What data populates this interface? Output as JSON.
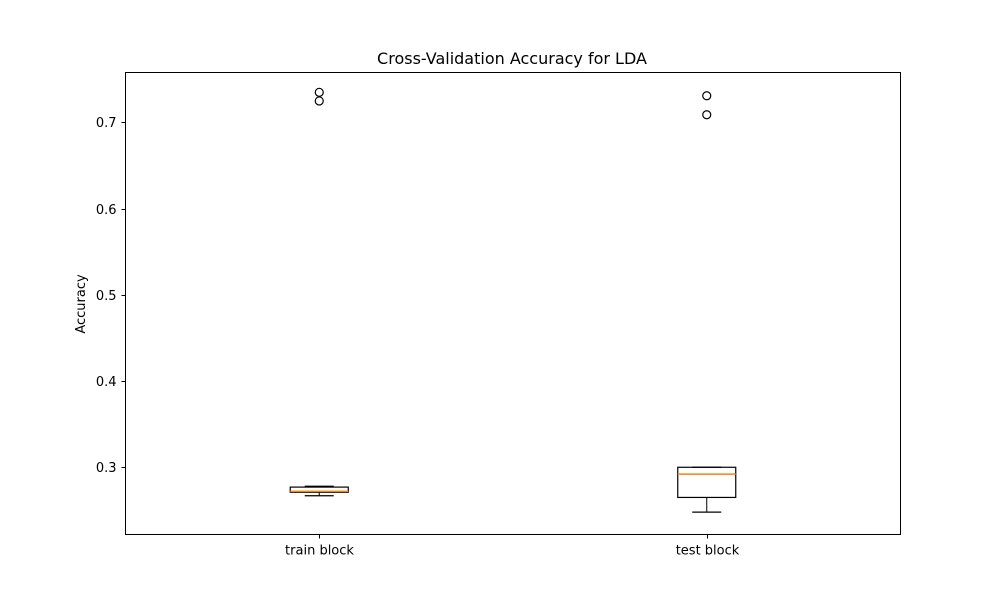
{
  "chart_data": {
    "type": "box",
    "title": "Cross-Validation Accuracy for LDA",
    "xlabel": "",
    "ylabel": "Accuracy",
    "ylim": [
      0.222,
      0.758
    ],
    "yticks": [
      {
        "value": 0.3,
        "label": "0.3"
      },
      {
        "value": 0.4,
        "label": "0.4"
      },
      {
        "value": 0.5,
        "label": "0.5"
      },
      {
        "value": 0.6,
        "label": "0.6"
      },
      {
        "value": 0.7,
        "label": "0.7"
      }
    ],
    "categories": [
      "train block",
      "test block"
    ],
    "boxes": [
      {
        "category": "train block",
        "whisker_low": 0.267,
        "q1": 0.271,
        "median": 0.272,
        "q3": 0.277,
        "whisker_high": 0.278,
        "outliers": [
          0.725,
          0.735
        ]
      },
      {
        "category": "test block",
        "whisker_low": 0.248,
        "q1": 0.265,
        "median": 0.292,
        "q3": 0.3,
        "whisker_high": 0.3,
        "outliers": [
          0.709,
          0.731
        ]
      }
    ],
    "colors": {
      "box": "#000000",
      "median": "#ff7f0e",
      "outlier": "#000000"
    },
    "grid": false,
    "legend": "none"
  }
}
